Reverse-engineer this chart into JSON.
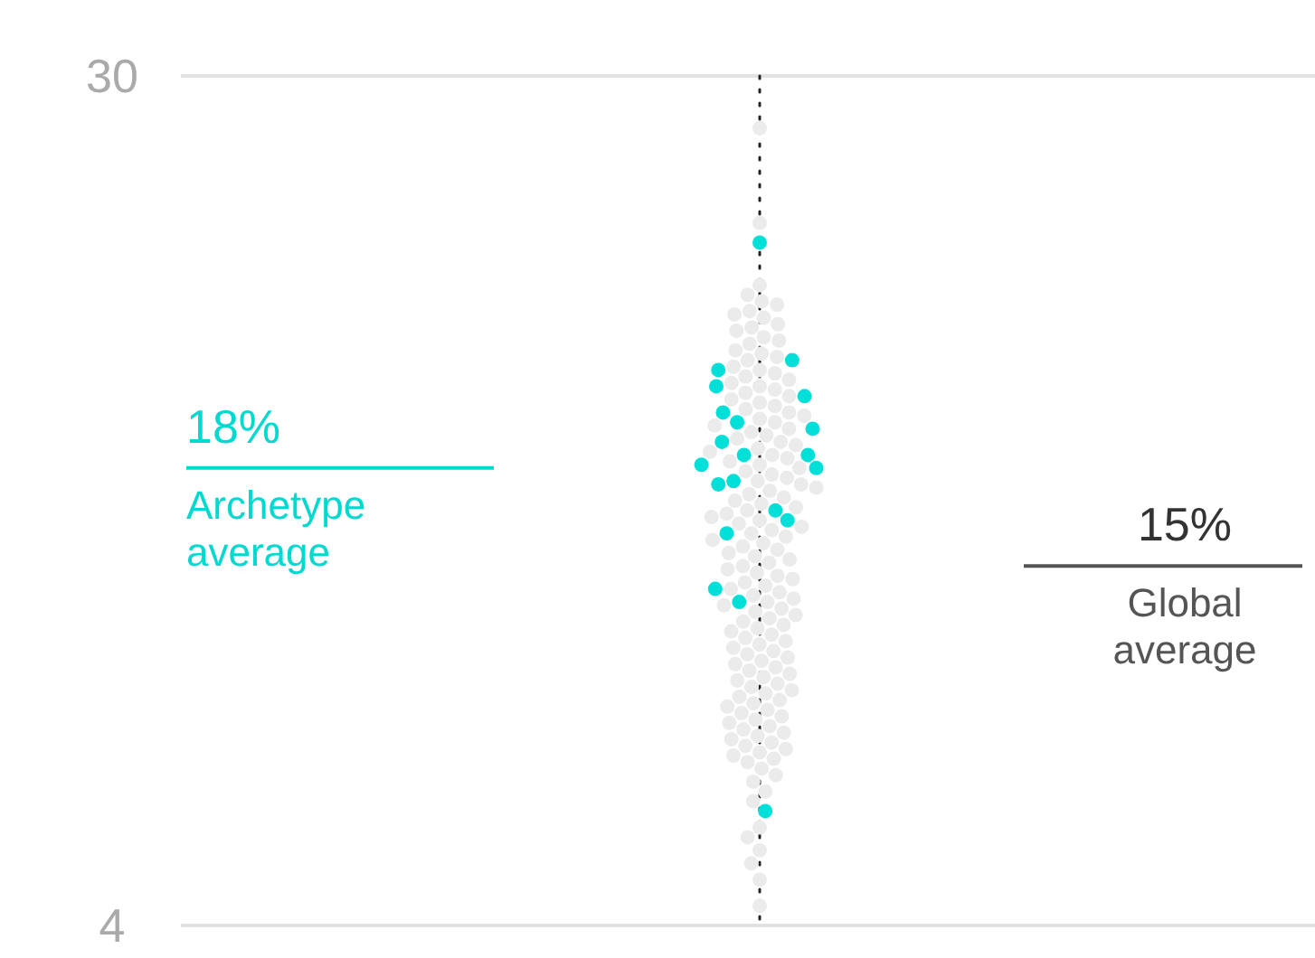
{
  "chart_data": {
    "type": "scatter",
    "categories": [
      null
    ],
    "ylim": [
      4,
      30
    ],
    "yticks": [
      4,
      30
    ],
    "grid": "y",
    "marker": "circle",
    "series": [
      {
        "color": "#ebebeb",
        "x": [
          null,
          null,
          null,
          null,
          null,
          null,
          null,
          null,
          null,
          null,
          null,
          null,
          null,
          null,
          null,
          null,
          null,
          null,
          null,
          null,
          null,
          null,
          null,
          null,
          null,
          null,
          null,
          null,
          null,
          null,
          null,
          null,
          null,
          null,
          null,
          null,
          null,
          null,
          null,
          null,
          null,
          null,
          null,
          null,
          null,
          null,
          null,
          null,
          null,
          null,
          null,
          null,
          null,
          null,
          null,
          null,
          null,
          null,
          null,
          null,
          null,
          null,
          null,
          null,
          null,
          null,
          null,
          null,
          null,
          null,
          null,
          null,
          null,
          null,
          null,
          null,
          null,
          null,
          null,
          null,
          null,
          null,
          null,
          null,
          null,
          null,
          null,
          null,
          null,
          null,
          null,
          null,
          null,
          null,
          null,
          null,
          null,
          null,
          null,
          null,
          null,
          null,
          null,
          null,
          null,
          null,
          null,
          null,
          null,
          null,
          null,
          null,
          null,
          null,
          null,
          null,
          null,
          null,
          null,
          null,
          null,
          null,
          null,
          null,
          null,
          null,
          null,
          null,
          null,
          null,
          null,
          null,
          null,
          null,
          null,
          null,
          null,
          null,
          null,
          null,
          null,
          null,
          null,
          null,
          null,
          null,
          null,
          null,
          null,
          null,
          null,
          null
        ],
        "values": [
          28.4,
          25.5,
          23.6,
          23.3,
          23.1,
          23.0,
          22.8,
          22.7,
          22.6,
          22.4,
          22.3,
          22.2,
          22.0,
          21.9,
          21.8,
          21.6,
          21.5,
          21.4,
          21.3,
          21.1,
          21.0,
          20.9,
          20.8,
          20.7,
          20.6,
          20.5,
          20.4,
          20.3,
          20.2,
          20.1,
          20.0,
          19.9,
          19.8,
          19.7,
          19.6,
          19.5,
          19.4,
          19.3,
          19.2,
          19.1,
          19.0,
          18.9,
          18.8,
          18.7,
          18.6,
          18.5,
          18.4,
          18.3,
          18.2,
          18.1,
          18.0,
          17.9,
          17.8,
          17.7,
          17.6,
          17.5,
          17.4,
          17.3,
          17.2,
          17.1,
          17.0,
          16.9,
          16.8,
          16.7,
          16.6,
          16.5,
          16.4,
          16.3,
          16.2,
          16.1,
          16.0,
          15.9,
          15.8,
          15.7,
          15.6,
          15.5,
          15.4,
          15.3,
          15.2,
          15.1,
          15.0,
          14.9,
          14.8,
          14.7,
          14.6,
          14.5,
          14.4,
          14.3,
          14.2,
          14.1,
          14.0,
          13.9,
          13.8,
          13.7,
          13.6,
          13.5,
          13.4,
          13.3,
          13.2,
          13.1,
          13.0,
          12.9,
          12.8,
          12.7,
          12.6,
          12.5,
          12.4,
          12.3,
          12.2,
          12.1,
          12.0,
          11.9,
          11.8,
          11.7,
          11.6,
          11.5,
          11.4,
          11.3,
          11.2,
          11.1,
          11.0,
          10.9,
          10.8,
          10.7,
          10.6,
          10.5,
          10.4,
          10.3,
          10.2,
          10.1,
          10.0,
          9.9,
          9.8,
          9.7,
          9.6,
          9.5,
          9.4,
          9.3,
          9.2,
          9.1,
          9.0,
          8.8,
          8.6,
          8.4,
          8.1,
          7.8,
          7.0,
          6.7,
          6.3,
          5.9,
          5.4,
          4.6
        ]
      },
      {
        "color": "#00e0d8",
        "x": [
          null,
          null,
          null,
          null,
          null,
          null,
          null,
          null,
          null,
          null,
          null,
          null,
          null,
          null,
          null,
          null,
          null,
          null,
          null,
          null,
          null
        ],
        "values": [
          24.9,
          21.3,
          21.0,
          20.5,
          20.2,
          19.7,
          19.4,
          19.2,
          18.8,
          18.4,
          18.4,
          18.1,
          18.0,
          17.6,
          17.5,
          16.7,
          16.4,
          16.0,
          14.3,
          13.9,
          7.5
        ]
      }
    ],
    "ref_lines": [
      {
        "axis": "y",
        "value": 18,
        "label": "Archetype average",
        "color": "#00d9d0"
      },
      {
        "axis": "y",
        "value": 15,
        "label": "Global average",
        "color": "#555555"
      }
    ],
    "annotations": [
      {
        "text": "18%",
        "y": 18
      },
      {
        "text": "15%",
        "y": 15
      }
    ]
  }
}
